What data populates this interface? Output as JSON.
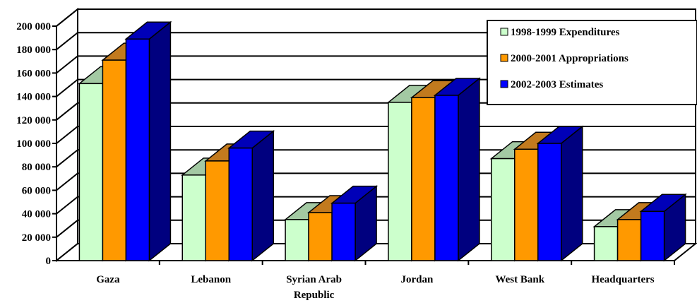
{
  "chart_data": {
    "type": "bar",
    "categories": [
      "Gaza",
      "Lebanon",
      "Syrian Arab Republic",
      "Jordan",
      "West Bank",
      "Headquarters"
    ],
    "category_lines": [
      [
        "Gaza"
      ],
      [
        "Lebanon"
      ],
      [
        "Syrian Arab",
        "Republic"
      ],
      [
        "Jordan"
      ],
      [
        "West Bank"
      ],
      [
        "Headquarters"
      ]
    ],
    "series": [
      {
        "name": "1998-1999 Expenditures",
        "values": [
          151000,
          73000,
          35000,
          135000,
          87000,
          29000
        ],
        "color": "#ccffcc",
        "side_color": "#7f9f7f",
        "top_color": "#a3c9a3"
      },
      {
        "name": "2000-2001 Appropriations",
        "values": [
          171000,
          85000,
          41000,
          139000,
          95000,
          35000
        ],
        "color": "#ff9900",
        "side_color": "#8a5500",
        "top_color": "#c27a1e"
      },
      {
        "name": "2002-2003 Estimates",
        "values": [
          189000,
          96000,
          49000,
          141000,
          100000,
          42000
        ],
        "color": "#0000ff",
        "side_color": "#00007f",
        "top_color": "#0000b8"
      }
    ],
    "ylim": [
      0,
      200000
    ],
    "yticks": [
      0,
      20000,
      40000,
      60000,
      80000,
      100000,
      120000,
      140000,
      160000,
      180000,
      200000
    ],
    "ytick_labels": [
      "0",
      "20 000",
      "40 000",
      "60 000",
      "80 000",
      "100 000",
      "120 000",
      "140 000",
      "160 000",
      "180 000",
      "200 000"
    ],
    "grid": true,
    "legend_position": "top-right",
    "title": "",
    "xlabel": "",
    "ylabel": ""
  }
}
